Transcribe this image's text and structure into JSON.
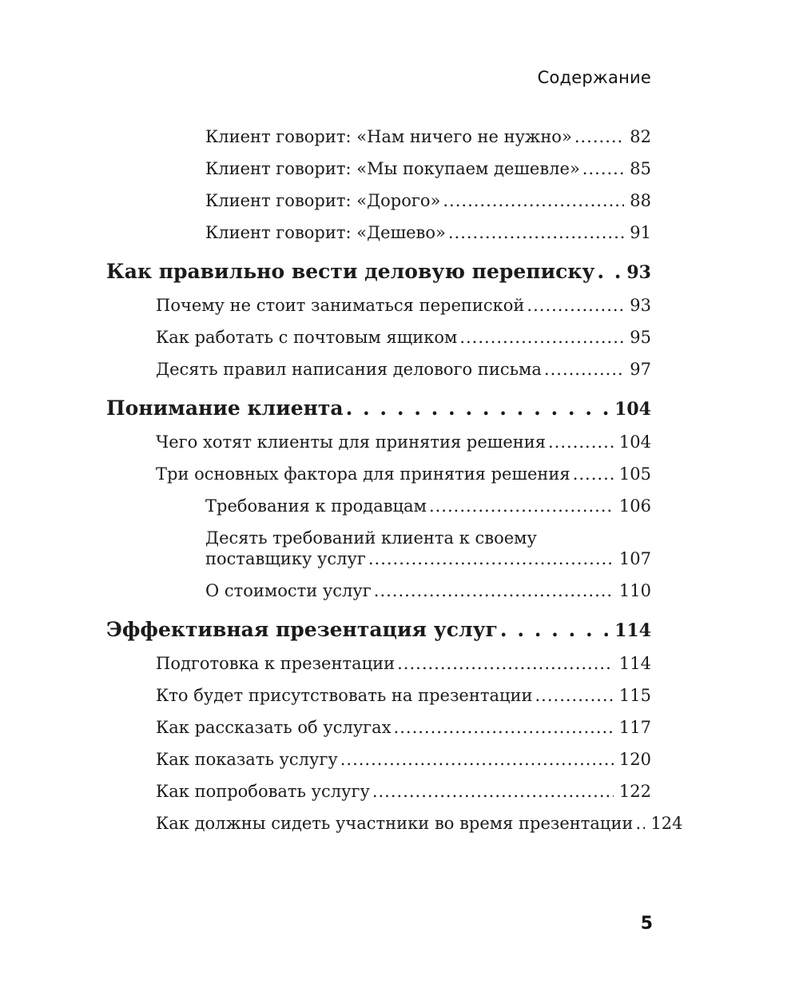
{
  "page": {
    "running_head": "Содержание",
    "folio": "5"
  },
  "toc": {
    "sections": [
      {
        "items": [
          {
            "text": "Клиент говорит: «Нам ничего не нужно»",
            "page": "82"
          },
          {
            "text": "Клиент говорит: «Мы покупаем дешевле»",
            "page": "85"
          },
          {
            "text": "Клиент говорит: «Дорого»",
            "page": "88"
          },
          {
            "text": "Клиент говорит: «Дешево»",
            "page": "91"
          }
        ]
      },
      {
        "heading": {
          "text": "Как правильно вести деловую переписку",
          "page": "93"
        },
        "items": [
          {
            "text": "Почему не стоит заниматься перепиской",
            "page": "93"
          },
          {
            "text": "Как работать с почтовым ящиком",
            "page": "95"
          },
          {
            "text": "Десять правил написания делового письма",
            "page": "97"
          }
        ]
      },
      {
        "heading": {
          "text": "Понимание клиента",
          "page": "104"
        },
        "items": [
          {
            "text": "Чего хотят клиенты для принятия решения",
            "page": "104"
          },
          {
            "text": "Три основных фактора для принятия решения",
            "page": "105"
          },
          {
            "text": "Требования к продавцам",
            "page": "106"
          },
          {
            "text": "Десять требований клиента к своему",
            "text2": "поставщику услуг",
            "page": "107"
          },
          {
            "text": "О стоимости услуг",
            "page": "110"
          }
        ]
      },
      {
        "heading": {
          "text": "Эффективная презентация услуг",
          "page": "114"
        },
        "items": [
          {
            "text": "Подготовка к презентации",
            "page": "114"
          },
          {
            "text": "Кто будет присутствовать на презентации",
            "page": "115"
          },
          {
            "text": "Как рассказать об услугах",
            "page": "117"
          },
          {
            "text": "Как показать услугу",
            "page": "120"
          },
          {
            "text": "Как попробовать услугу",
            "page": "122"
          },
          {
            "text": "Как должны сидеть участники во время презентации",
            "page": "124"
          }
        ]
      }
    ]
  }
}
